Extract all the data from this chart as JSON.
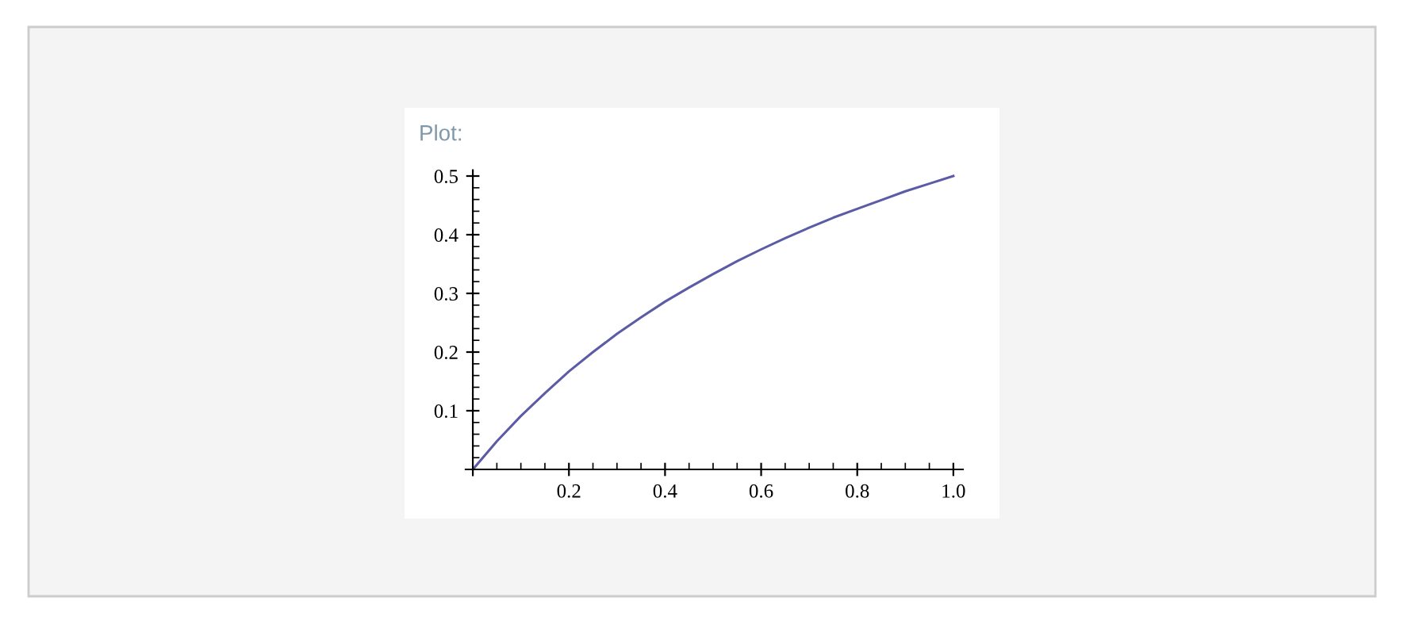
{
  "chart_data": {
    "type": "line",
    "title": "Plot:",
    "x": [
      0,
      0.05,
      0.1,
      0.15,
      0.2,
      0.25,
      0.3,
      0.35,
      0.4,
      0.45,
      0.5,
      0.55,
      0.6,
      0.65,
      0.7,
      0.75,
      0.8,
      0.85,
      0.9,
      0.95,
      1.0
    ],
    "series": [
      {
        "color": "#5b5ba6",
        "values": [
          0,
          0.048,
          0.091,
          0.13,
          0.167,
          0.2,
          0.231,
          0.259,
          0.286,
          0.31,
          0.333,
          0.355,
          0.375,
          0.394,
          0.412,
          0.429,
          0.444,
          0.459,
          0.474,
          0.487,
          0.5
        ]
      }
    ],
    "xlim": [
      -0.015,
      1.02
    ],
    "ylim": [
      -0.01,
      0.51
    ],
    "xticks": [
      0.2,
      0.4,
      0.6,
      0.8,
      {
        "value": 1.0,
        "label": "1.0"
      }
    ],
    "yticks": [
      0.1,
      0.2,
      0.3,
      0.4,
      0.5
    ],
    "grid": false,
    "legend": false,
    "marker": "none",
    "line_style": "solid"
  }
}
